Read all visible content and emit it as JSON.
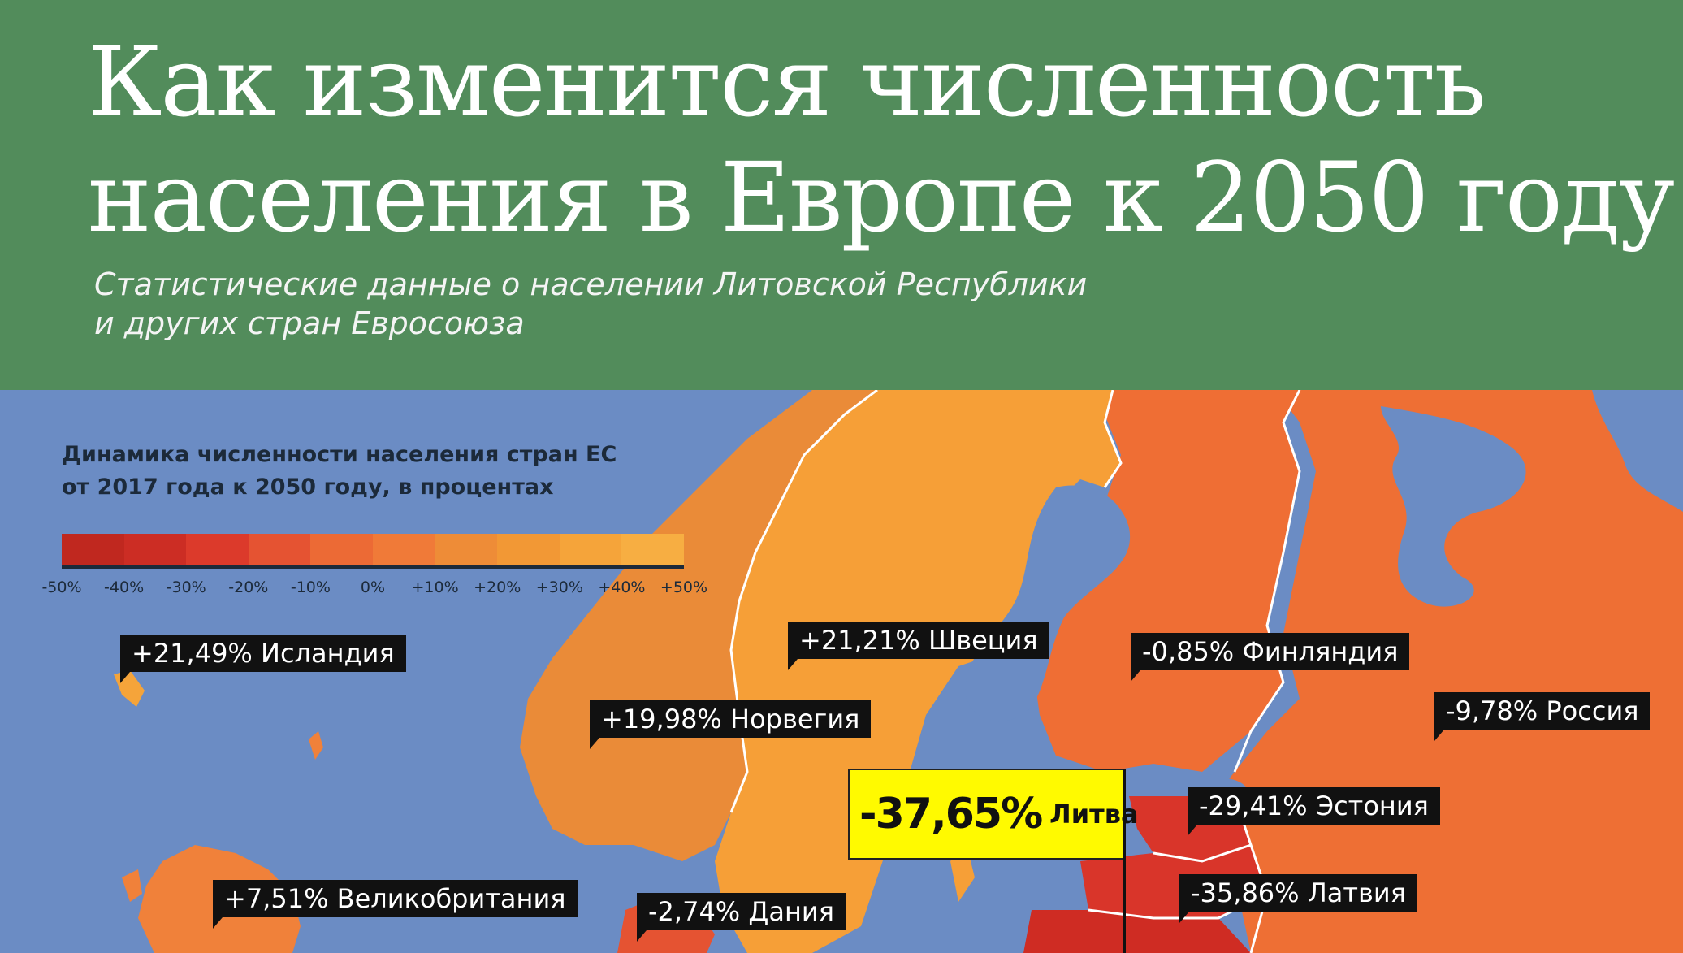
{
  "header": {
    "title_line1": "Как изменится численность",
    "title_line2": "населения в Европе к 2050 году",
    "subtitle_line1": "Статистические данные о населении Литовской Республики",
    "subtitle_line2": "и других стран Евросоюза",
    "bg_color": "#528c5b"
  },
  "legend": {
    "title_line1": "Динамика численности населения стран ЕС",
    "title_line2": "от 2017 года к 2050 году, в процентах",
    "scale_colors": [
      "#c0281f",
      "#cc2d24",
      "#dc3a2b",
      "#e55332",
      "#ec6a35",
      "#f07a38",
      "#ee8c37",
      "#f29835",
      "#f5a43a",
      "#f7ae42"
    ],
    "ticks": [
      "-50%",
      "-40%",
      "-30%",
      "-20%",
      "-10%",
      "0%",
      "+10%",
      "+20%",
      "+30%",
      "+40%",
      "+50%"
    ]
  },
  "countries": [
    {
      "name": "Исландия",
      "change": "+21,49%"
    },
    {
      "name": "Швеция",
      "change": "+21,21%"
    },
    {
      "name": "Финляндия",
      "change": "-0,85%"
    },
    {
      "name": "Норвегия",
      "change": "+19,98%"
    },
    {
      "name": "Россия",
      "change": "-9,78%"
    },
    {
      "name": "Эстония",
      "change": "-29,41%"
    },
    {
      "name": "Латвия",
      "change": "-35,86%"
    },
    {
      "name": "Великобритания",
      "change": "+7,51%"
    },
    {
      "name": "Дания",
      "change": "-2,74%"
    },
    {
      "name": "Литва",
      "change": "-37,65%"
    }
  ],
  "colors": {
    "sea": "#6b8cc4",
    "norway": "#ea8b38",
    "sweden": "#f69f37",
    "finland": "#ef6e34",
    "russia": "#ee6f34",
    "baltic_dark": "#d9352a",
    "uk": "#f0813a",
    "callout": "#fffa00"
  }
}
